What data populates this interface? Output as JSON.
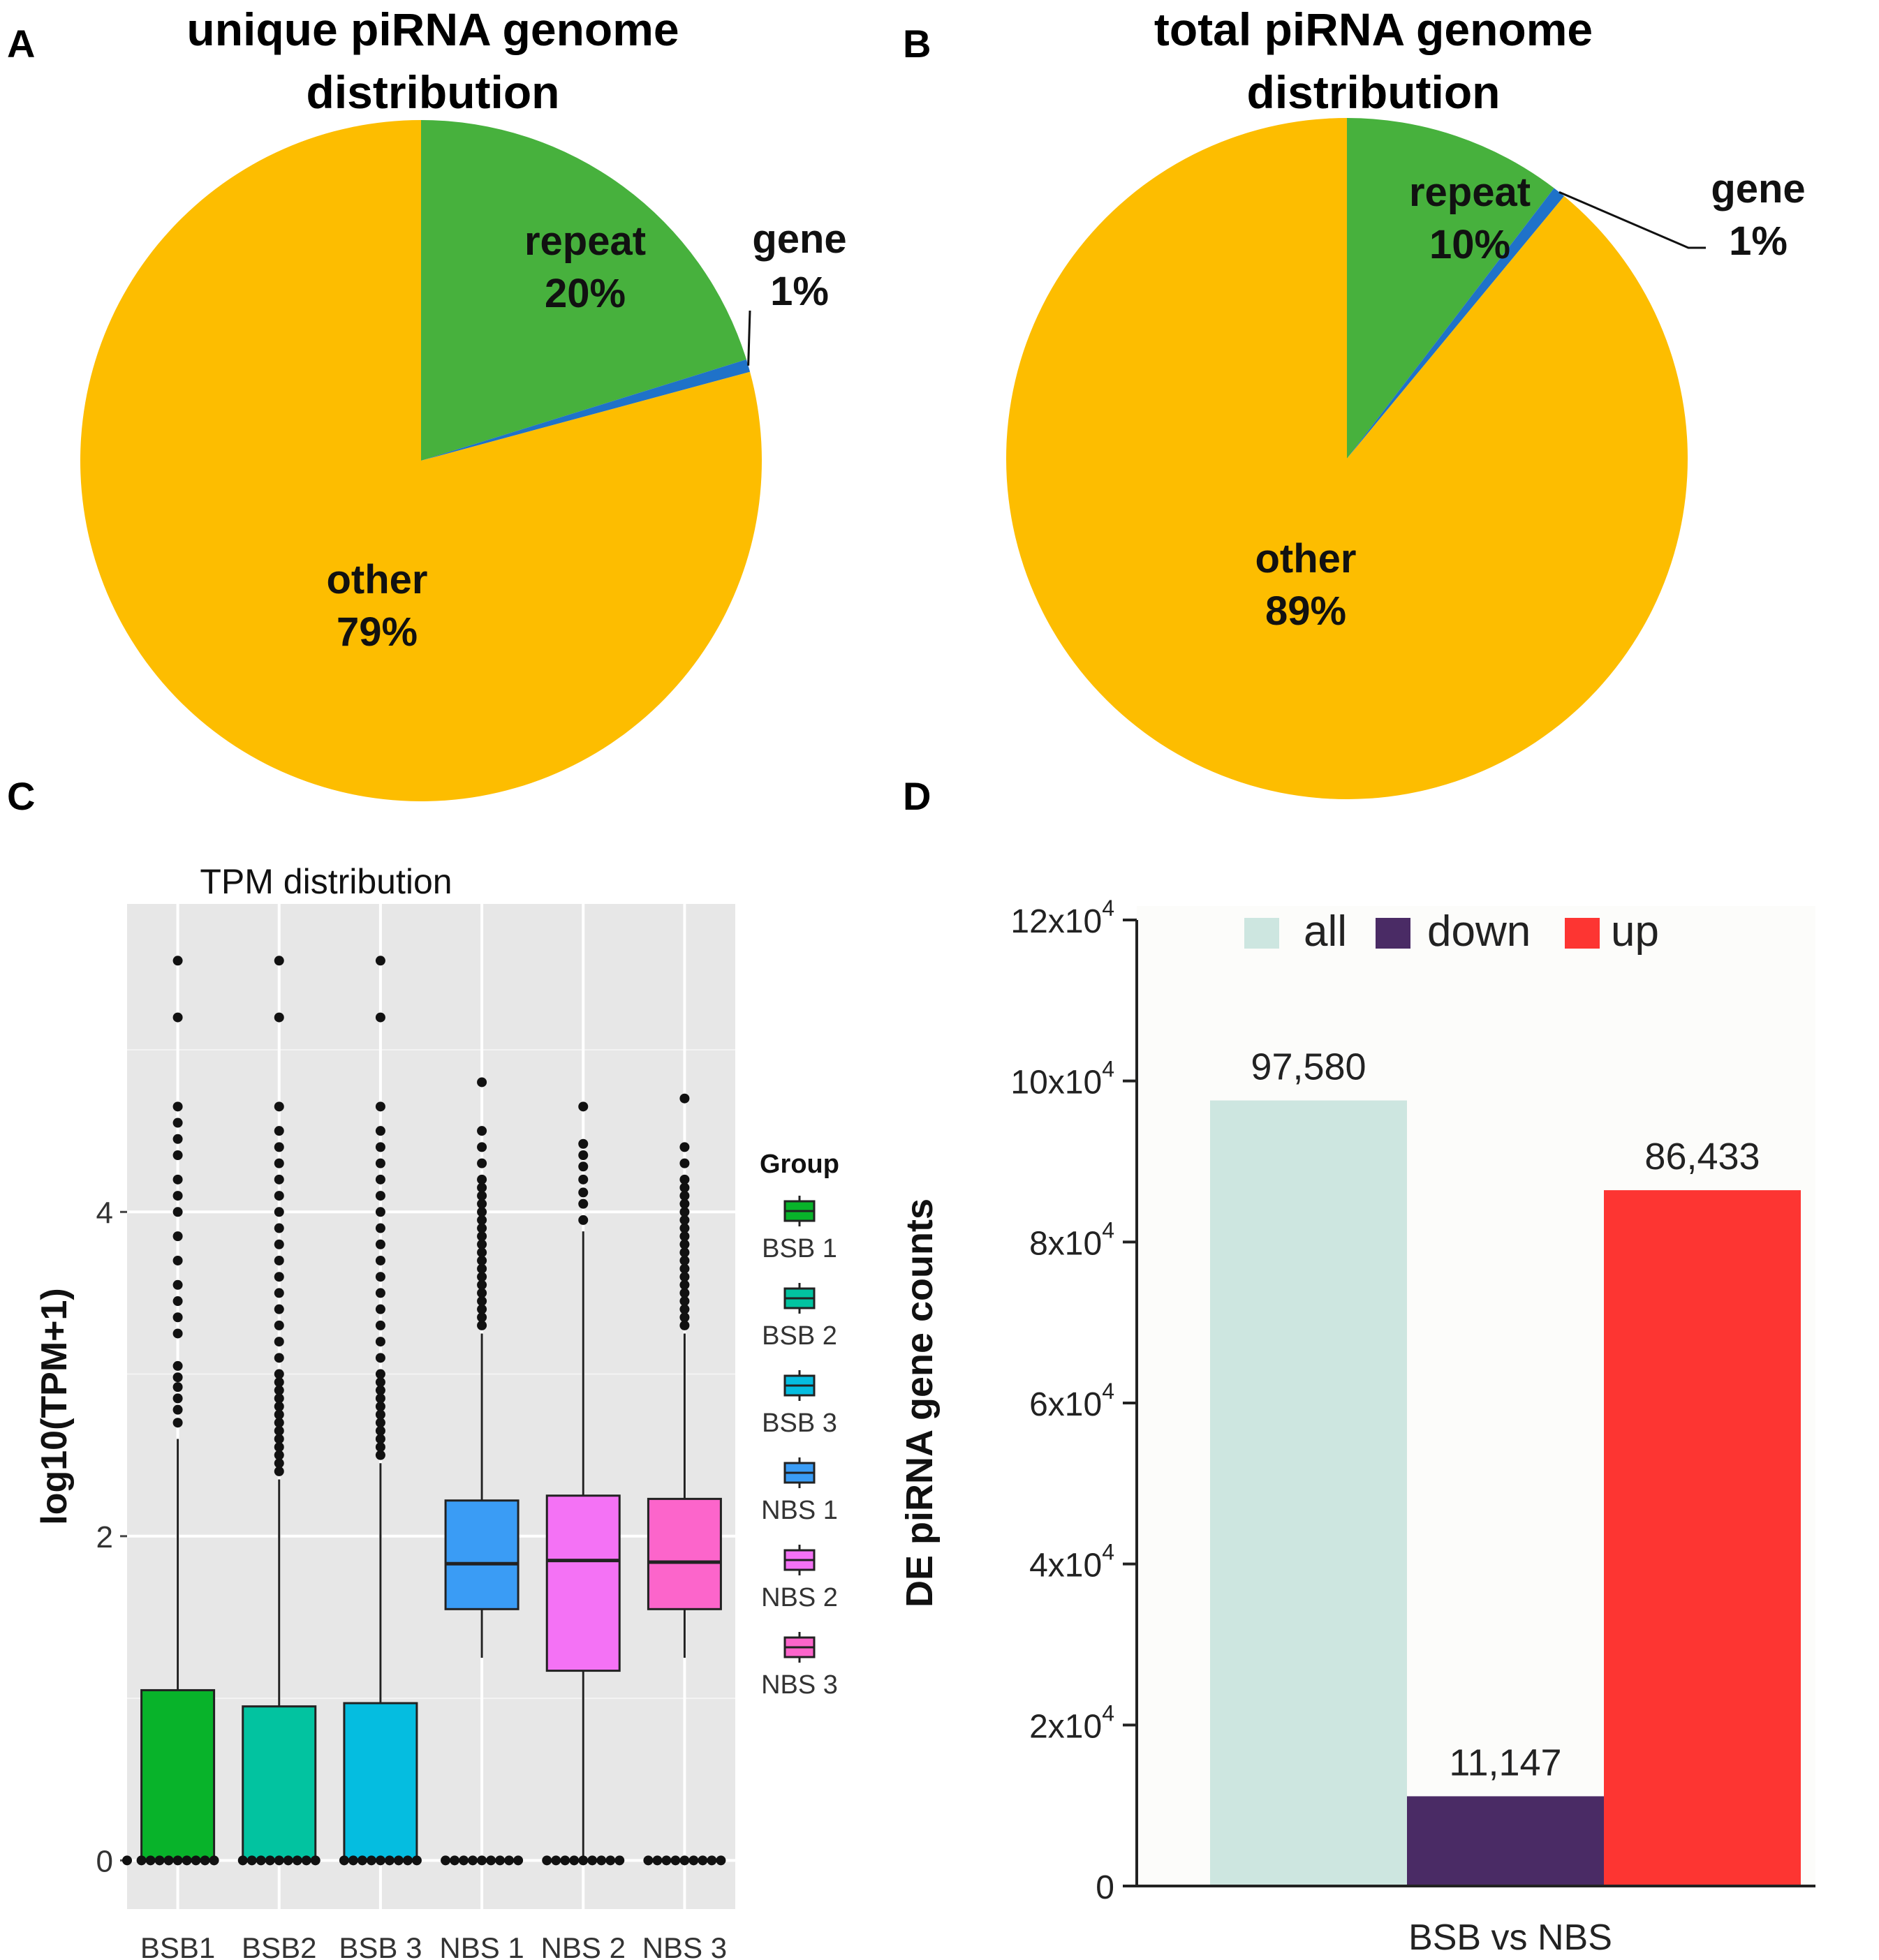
{
  "panels": {
    "A": {
      "letter": "A",
      "title_line1": "unique piRNA genome",
      "title_line2": "distribution"
    },
    "B": {
      "letter": "B",
      "title_line1": "total piRNA genome",
      "title_line2": "distribution"
    },
    "C": {
      "letter": "C"
    },
    "D": {
      "letter": "D"
    }
  },
  "colors": {
    "repeat": "#47b13d",
    "gene": "#1f72c9",
    "other": "#fdbd00",
    "boxplot_bg": "#e7e7e7",
    "BSB1": "#08b32a",
    "BSB2": "#02c3a0",
    "BSB3": "#05bde0",
    "NBS1": "#3a9cf5",
    "NBS2": "#f472f5",
    "NBS3": "#fc65cb",
    "all": "#cde6e0",
    "down": "#4a2b65",
    "up": "#fd3532"
  },
  "chart_data": [
    {
      "id": "A",
      "type": "pie",
      "title": "unique piRNA genome distribution",
      "slices": [
        {
          "label": "repeat",
          "pct_label": "20%",
          "value": 20.2
        },
        {
          "label": "gene",
          "pct_label": "1%",
          "value": 0.6
        },
        {
          "label": "other",
          "pct_label": "79%",
          "value": 79.2
        }
      ]
    },
    {
      "id": "B",
      "type": "pie",
      "title": "total piRNA genome distribution",
      "slices": [
        {
          "label": "repeat",
          "pct_label": "10%",
          "value": 10.4
        },
        {
          "label": "gene",
          "pct_label": "1%",
          "value": 0.6
        },
        {
          "label": "other",
          "pct_label": "89%",
          "value": 89.0
        }
      ]
    },
    {
      "id": "C",
      "type": "box",
      "title": "TPM distribution",
      "ylabel": "log10(TPM+1)",
      "ylim": [
        -0.3,
        5.9
      ],
      "yticks": [
        0,
        2,
        4
      ],
      "grid": true,
      "legend_title": "Group",
      "boxes": [
        {
          "tick": "BSB1",
          "legend": "BSB 1",
          "color_key": "BSB1",
          "q1": 0,
          "median": 0,
          "q3": 1.05,
          "whisker_low": 0,
          "whisker_high": 2.6,
          "outliers": [
            2.7,
            2.78,
            2.85,
            2.92,
            2.98,
            3.05,
            3.25,
            3.35,
            3.45,
            3.55,
            3.7,
            3.85,
            4.0,
            4.1,
            4.2,
            4.35,
            4.45,
            4.55,
            4.65,
            5.2,
            5.55
          ]
        },
        {
          "tick": "BSB2",
          "legend": "BSB 2",
          "color_key": "BSB2",
          "q1": 0,
          "median": 0,
          "q3": 0.95,
          "whisker_low": 0,
          "whisker_high": 2.35,
          "outliers": [
            2.4,
            2.45,
            2.5,
            2.55,
            2.6,
            2.65,
            2.7,
            2.75,
            2.8,
            2.85,
            2.9,
            2.95,
            3.0,
            3.1,
            3.2,
            3.3,
            3.4,
            3.5,
            3.6,
            3.7,
            3.8,
            3.9,
            4.0,
            4.1,
            4.2,
            4.3,
            4.4,
            4.5,
            4.65,
            5.2,
            5.55
          ]
        },
        {
          "tick": "BSB 3",
          "legend": "BSB 3",
          "color_key": "BSB3",
          "q1": 0,
          "median": 0,
          "q3": 0.97,
          "whisker_low": 0,
          "whisker_high": 2.45,
          "outliers": [
            2.5,
            2.55,
            2.6,
            2.65,
            2.7,
            2.75,
            2.8,
            2.85,
            2.9,
            2.95,
            3.0,
            3.1,
            3.2,
            3.3,
            3.4,
            3.5,
            3.6,
            3.7,
            3.8,
            3.9,
            4.0,
            4.1,
            4.2,
            4.3,
            4.4,
            4.5,
            4.65,
            5.2,
            5.55
          ]
        },
        {
          "tick": "NBS 1",
          "legend": "NBS 1",
          "color_key": "NBS1",
          "q1": 1.55,
          "median": 1.83,
          "q3": 2.22,
          "whisker_low": 1.25,
          "whisker_high": 3.25,
          "outliers": [
            3.3,
            3.35,
            3.4,
            3.45,
            3.5,
            3.55,
            3.6,
            3.65,
            3.7,
            3.75,
            3.8,
            3.85,
            3.9,
            3.95,
            4.0,
            4.05,
            4.1,
            4.15,
            4.2,
            4.3,
            4.4,
            4.5,
            4.8
          ]
        },
        {
          "tick": "NBS 2",
          "legend": "NBS 2",
          "color_key": "NBS2",
          "q1": 1.17,
          "median": 1.85,
          "q3": 2.25,
          "whisker_low": 0,
          "whisker_high": 3.88,
          "outliers": [
            3.95,
            4.05,
            4.12,
            4.2,
            4.28,
            4.35,
            4.42,
            4.65
          ]
        },
        {
          "tick": "NBS 3",
          "legend": "NBS 3",
          "color_key": "NBS3",
          "q1": 1.55,
          "median": 1.84,
          "q3": 2.23,
          "whisker_low": 1.25,
          "whisker_high": 3.25,
          "outliers": [
            3.3,
            3.35,
            3.4,
            3.45,
            3.5,
            3.55,
            3.6,
            3.65,
            3.7,
            3.75,
            3.8,
            3.85,
            3.9,
            3.95,
            4.0,
            4.05,
            4.1,
            4.15,
            4.2,
            4.3,
            4.4,
            4.7
          ]
        }
      ]
    },
    {
      "id": "D",
      "type": "bar",
      "xlabel": "BSB vs NBS",
      "ylabel": "DE piRNA gene counts",
      "ylim": [
        0,
        120000
      ],
      "yticks": [
        {
          "value": 0,
          "base": "0",
          "exp": ""
        },
        {
          "value": 20000,
          "base": "2x10",
          "exp": "4"
        },
        {
          "value": 40000,
          "base": "4x10",
          "exp": "4"
        },
        {
          "value": 60000,
          "base": "6x10",
          "exp": "4"
        },
        {
          "value": 80000,
          "base": "8x10",
          "exp": "4"
        },
        {
          "value": 100000,
          "base": "10x10",
          "exp": "4"
        },
        {
          "value": 120000,
          "base": "12x10",
          "exp": "4"
        }
      ],
      "series": [
        {
          "name": "all",
          "value": 97580,
          "label": "97,580",
          "color_key": "all"
        },
        {
          "name": "down",
          "value": 11147,
          "label": "11,147",
          "color_key": "down"
        },
        {
          "name": "up",
          "value": 86433,
          "label": "86,433",
          "color_key": "up"
        }
      ]
    }
  ]
}
